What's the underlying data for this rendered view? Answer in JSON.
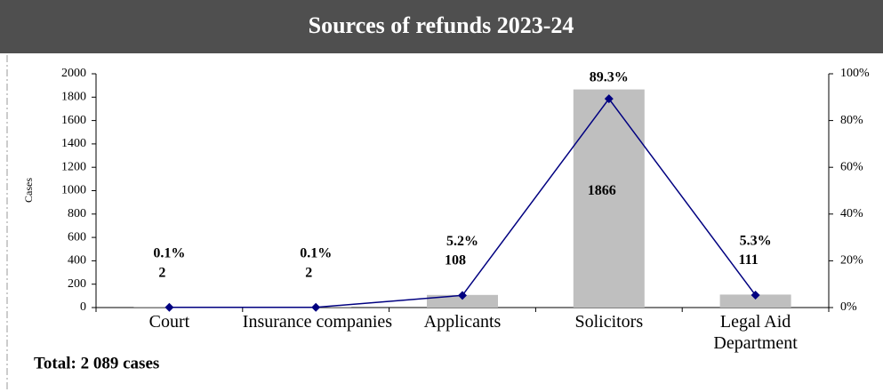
{
  "chart_data": {
    "type": "bar",
    "title": "Sources of refunds 2023-24",
    "y_label": "Cases",
    "annotation": "Total: 2 089 cases",
    "categories": [
      "Court",
      "Insurance companies",
      "Applicants",
      "Solicitors",
      "Legal Aid Department"
    ],
    "series": [
      {
        "type": "bar",
        "color": "#bfbfbf",
        "values": [
          2,
          2,
          108,
          1866,
          111
        ]
      },
      {
        "type": "line",
        "axis": "y2",
        "color": "#000080",
        "values": [
          0.1,
          0.1,
          5.2,
          89.3,
          5.3
        ],
        "value_labels": [
          "0.1%",
          "0.1%",
          "5.2%",
          "89.3%",
          "5.3%"
        ]
      }
    ],
    "ylim": [
      0,
      2000
    ],
    "yticks": [
      0,
      200,
      400,
      600,
      800,
      1000,
      1200,
      1400,
      1600,
      1800,
      2000
    ],
    "y2lim": [
      0,
      100
    ],
    "y2ticks": [
      {
        "value": 0,
        "label": "0%"
      },
      {
        "value": 20,
        "label": "20%"
      },
      {
        "value": 40,
        "label": "40%"
      },
      {
        "value": 60,
        "label": "60%"
      },
      {
        "value": 80,
        "label": "80%"
      },
      {
        "value": 100,
        "label": "100%"
      }
    ],
    "grid": false
  }
}
